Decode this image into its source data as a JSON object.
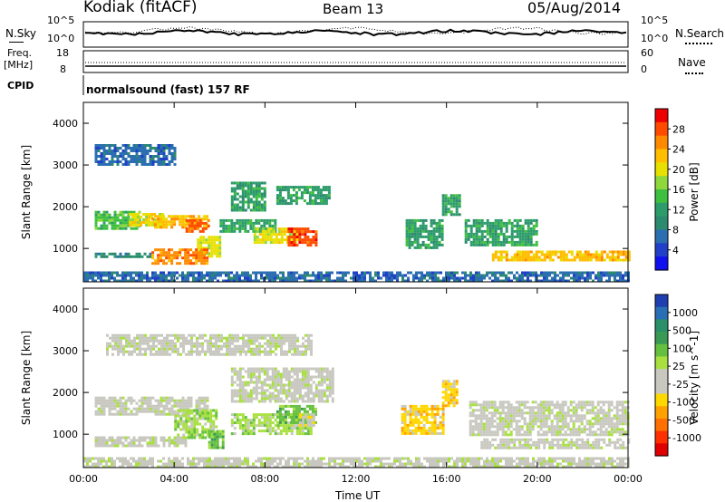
{
  "header": {
    "radar": "Kodiak (fitACF)",
    "beam": "Beam 13",
    "date": "05/Aug/2014"
  },
  "noise_panel": {
    "left_label": "N.Sky",
    "left_ticks": [
      "10^5",
      "10^0"
    ],
    "right_ticks": [
      "10^5",
      "10^0"
    ],
    "right_label": "N.Search"
  },
  "freq_panel": {
    "left_label_1": "Freq.",
    "left_label_2": "[MHz]",
    "left_ticks": [
      "18",
      "8"
    ],
    "right_ticks": [
      "60",
      "0"
    ],
    "right_label": "Nave"
  },
  "cpid_panel": {
    "label": "CPID",
    "program": "normalsound (fast) 157 RF"
  },
  "colorbars": {
    "power": {
      "label": "Power [dB]",
      "ticks": [
        "28",
        "24",
        "20",
        "16",
        "12",
        "8",
        "4"
      ],
      "colors": [
        "#ee0000",
        "#ff4a00",
        "#ff8a00",
        "#ffbe00",
        "#e8e000",
        "#8fd83c",
        "#3fbf3f",
        "#2c9c6a",
        "#2c8a6e",
        "#2b6fb0",
        "#2040c8",
        "#1010ee"
      ]
    },
    "velocity": {
      "label": "Velocity [m s^-1]",
      "ticks": [
        "1000",
        "500",
        "100",
        "25",
        "-25",
        "-100",
        "-500",
        "-1000"
      ],
      "colors": [
        "#1f3fb0",
        "#2a6fb5",
        "#2a8f6a",
        "#3a9a55",
        "#66c040",
        "#a8e040",
        "#c8c8c0",
        "#c8c8c0",
        "#ffd800",
        "#ffa200",
        "#ff7000",
        "#ff3000",
        "#e00000"
      ]
    }
  },
  "axes": {
    "ylabel": "Slant Range [km]",
    "yticks": [
      "4000",
      "3000",
      "2000",
      "1000"
    ],
    "xlabel": "Time UT",
    "xticks": [
      "00:00",
      "04:00",
      "08:00",
      "12:00",
      "16:00",
      "20:00",
      "00:00"
    ]
  },
  "chart_data": [
    {
      "type": "heatmap",
      "title": "",
      "quantity": "Power [dB]",
      "xlabel": "Time UT",
      "ylabel": "Slant Range [km]",
      "xlim": [
        "00:00",
        "24:00"
      ],
      "ylim": [
        200,
        4500
      ],
      "clim": [
        0,
        30
      ],
      "cells": [
        {
          "t": [
            0.5,
            2.5
          ],
          "r": [
            1500,
            1900
          ],
          "v": 14
        },
        {
          "t": [
            2.0,
            3.5
          ],
          "r": [
            1550,
            1850
          ],
          "v": 20
        },
        {
          "t": [
            3.0,
            5.5
          ],
          "r": [
            1500,
            1800
          ],
          "v": 22
        },
        {
          "t": [
            4.5,
            5.5
          ],
          "r": [
            1400,
            1700
          ],
          "v": 26
        },
        {
          "t": [
            5.0,
            6.0
          ],
          "r": [
            800,
            1300
          ],
          "v": 18
        },
        {
          "t": [
            0.5,
            3.0
          ],
          "r": [
            780,
            900
          ],
          "v": 8
        },
        {
          "t": [
            3.0,
            5.5
          ],
          "r": [
            650,
            1000
          ],
          "v": 24
        },
        {
          "t": [
            6.0,
            8.5
          ],
          "r": [
            1400,
            1700
          ],
          "v": 12
        },
        {
          "t": [
            7.5,
            9.5
          ],
          "r": [
            1150,
            1500
          ],
          "v": 20
        },
        {
          "t": [
            9.0,
            10.2
          ],
          "r": [
            1100,
            1500
          ],
          "v": 28
        },
        {
          "t": [
            6.5,
            8.0
          ],
          "r": [
            1900,
            2600
          ],
          "v": 10
        },
        {
          "t": [
            8.5,
            10.8
          ],
          "r": [
            2100,
            2500
          ],
          "v": 10
        },
        {
          "t": [
            0.5,
            4.0
          ],
          "r": [
            3000,
            3500
          ],
          "v": 6
        },
        {
          "t": [
            14.2,
            15.8
          ],
          "r": [
            1000,
            1700
          ],
          "v": 10
        },
        {
          "t": [
            15.8,
            16.6
          ],
          "r": [
            1800,
            2300
          ],
          "v": 10
        },
        {
          "t": [
            16.8,
            20.0
          ],
          "r": [
            1100,
            1700
          ],
          "v": 10
        },
        {
          "t": [
            18.0,
            24.0
          ],
          "r": [
            700,
            950
          ],
          "v": 22
        },
        {
          "t": [
            0.0,
            24.0
          ],
          "r": [
            200,
            450
          ],
          "v": 6
        }
      ]
    },
    {
      "type": "heatmap",
      "title": "",
      "quantity": "Velocity [m s^-1]",
      "xlabel": "Time UT",
      "ylabel": "Slant Range [km]",
      "xlim": [
        "00:00",
        "24:00"
      ],
      "ylim": [
        200,
        4500
      ],
      "clim": [
        -1000,
        1000
      ],
      "cells": [
        {
          "t": [
            0.5,
            5.5
          ],
          "r": [
            1500,
            1900
          ],
          "v": 0
        },
        {
          "t": [
            4.0,
            5.8
          ],
          "r": [
            900,
            1600
          ],
          "v": 150
        },
        {
          "t": [
            5.5,
            6.2
          ],
          "r": [
            700,
            1100
          ],
          "v": 300
        },
        {
          "t": [
            0.5,
            4.5
          ],
          "r": [
            700,
            950
          ],
          "v": 0
        },
        {
          "t": [
            6.5,
            10.0
          ],
          "r": [
            1000,
            1500
          ],
          "v": 150
        },
        {
          "t": [
            8.5,
            10.2
          ],
          "r": [
            1300,
            1700
          ],
          "v": 300
        },
        {
          "t": [
            9.5,
            10.2
          ],
          "r": [
            1200,
            1500
          ],
          "v": -150
        },
        {
          "t": [
            6.5,
            11.0
          ],
          "r": [
            1800,
            2600
          ],
          "v": 0
        },
        {
          "t": [
            1.0,
            10.0
          ],
          "r": [
            2900,
            3400
          ],
          "v": 0
        },
        {
          "t": [
            14.0,
            15.8
          ],
          "r": [
            1000,
            1700
          ],
          "v": -400
        },
        {
          "t": [
            15.8,
            16.5
          ],
          "r": [
            1700,
            2300
          ],
          "v": -400
        },
        {
          "t": [
            17.0,
            24.0
          ],
          "r": [
            1000,
            1800
          ],
          "v": 0
        },
        {
          "t": [
            17.5,
            24.0
          ],
          "r": [
            650,
            900
          ],
          "v": 0
        },
        {
          "t": [
            0.0,
            24.0
          ],
          "r": [
            200,
            450
          ],
          "v": -50
        }
      ]
    }
  ]
}
